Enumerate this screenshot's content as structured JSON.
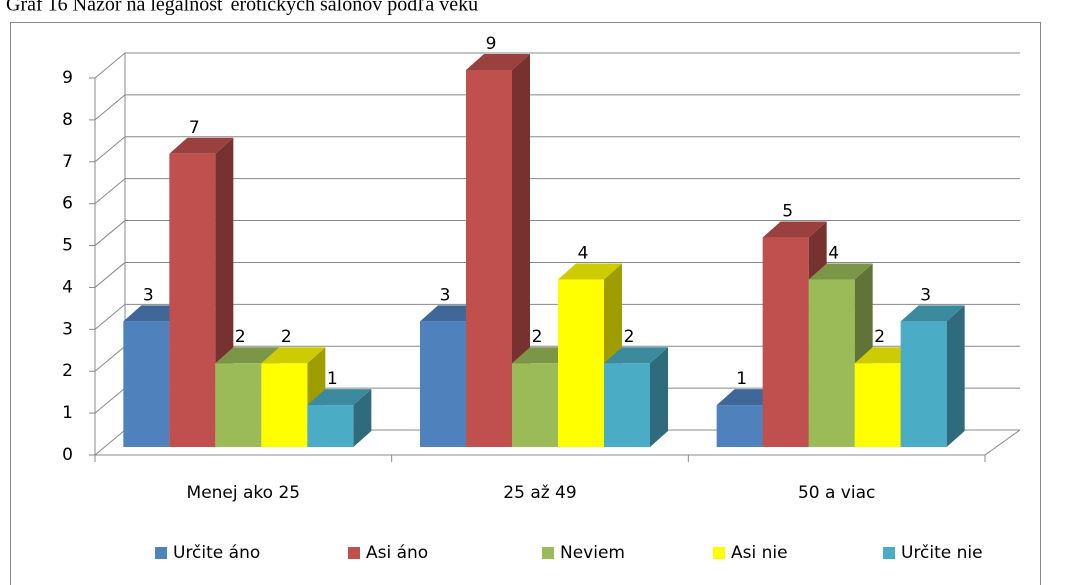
{
  "chart_data": {
    "type": "bar3d",
    "title": "Graf 16 Názor na legálnosť erotických salónov podľa veku",
    "categories": [
      "Menej ako 25",
      "25 až 49",
      "50 a viac"
    ],
    "series": [
      {
        "name": "Určite áno",
        "color": "#4f81bd",
        "values": [
          3,
          3,
          1
        ]
      },
      {
        "name": "Asi áno",
        "color": "#c0504d",
        "values": [
          7,
          9,
          5
        ]
      },
      {
        "name": "Neviem",
        "color": "#9bbb59",
        "values": [
          2,
          2,
          4
        ]
      },
      {
        "name": "Asi nie",
        "color": "#ffff00",
        "values": [
          2,
          4,
          2
        ]
      },
      {
        "name": "Určite nie",
        "color": "#4bacc6",
        "values": [
          1,
          2,
          3
        ]
      }
    ],
    "ylim": [
      0,
      9
    ],
    "yticks": [
      0,
      1,
      2,
      3,
      4,
      5,
      6,
      7,
      8,
      9
    ],
    "grid": true,
    "legend": "bottom"
  }
}
